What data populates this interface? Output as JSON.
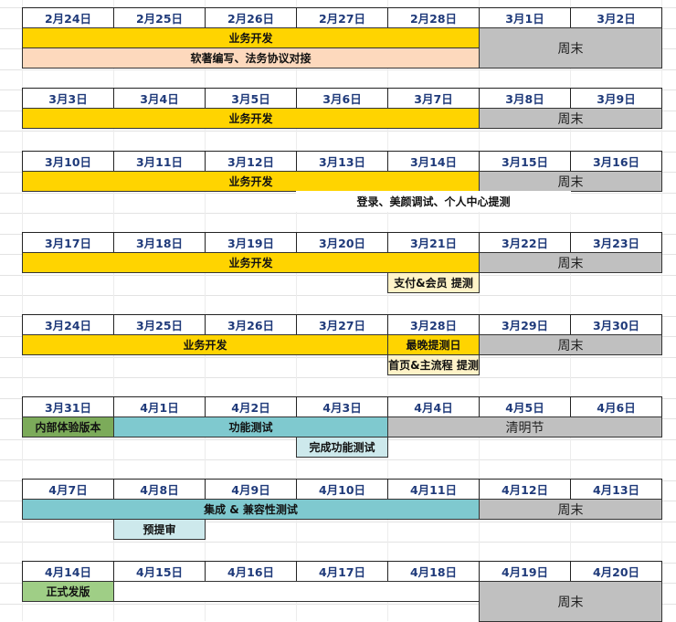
{
  "colors": {
    "dev": "#ffd400",
    "weekend": "#c0c0c0",
    "softcopy": "#fdd9bd",
    "note": "#fff3c8",
    "test": "#7fc9cf",
    "test_light": "#cde9ec",
    "internal": "#7cab5a",
    "release": "#9fce86",
    "blank": "#ffffff"
  },
  "weeks": [
    {
      "dates": [
        "2月24日",
        "2月25日",
        "2月26日",
        "2月27日",
        "2月28日",
        "3月1日",
        "3月2日"
      ],
      "rows": [
        [
          {
            "start": 0,
            "span": 5,
            "text": "业务开发",
            "color": "dev"
          },
          {
            "start": 5,
            "span": 2,
            "text": "周末",
            "color": "weekend",
            "rowspan": 2,
            "weekend": true
          }
        ],
        [
          {
            "start": 0,
            "span": 5,
            "text": "软著编写、法务协议对接",
            "color": "softcopy"
          }
        ]
      ]
    },
    {
      "dates": [
        "3月3日",
        "3月4日",
        "3月5日",
        "3月6日",
        "3月7日",
        "3月8日",
        "3月9日"
      ],
      "rows": [
        [
          {
            "start": 0,
            "span": 5,
            "text": "业务开发",
            "color": "dev"
          },
          {
            "start": 5,
            "span": 2,
            "text": "周末",
            "color": "weekend",
            "weekend": true
          }
        ]
      ]
    },
    {
      "dates": [
        "3月10日",
        "3月11日",
        "3月12日",
        "3月13日",
        "3月14日",
        "3月15日",
        "3月16日"
      ],
      "rows": [
        [
          {
            "start": 0,
            "span": 5,
            "text": "业务开发",
            "color": "dev"
          },
          {
            "start": 5,
            "span": 2,
            "text": "周末",
            "color": "weekend",
            "weekend": true
          }
        ],
        [
          {
            "start": 3,
            "span": 3,
            "text": "登录、美颜调试、个人中心提测",
            "color": "blank"
          }
        ]
      ]
    },
    {
      "dates": [
        "3月17日",
        "3月18日",
        "3月19日",
        "3月20日",
        "3月21日",
        "3月22日",
        "3月23日"
      ],
      "rows": [
        [
          {
            "start": 0,
            "span": 5,
            "text": "业务开发",
            "color": "dev"
          },
          {
            "start": 5,
            "span": 2,
            "text": "周末",
            "color": "weekend",
            "weekend": true
          }
        ],
        [
          {
            "start": 4,
            "span": 1,
            "text": "支付&会员 提测",
            "color": "note"
          }
        ]
      ]
    },
    {
      "dates": [
        "3月24日",
        "3月25日",
        "3月26日",
        "3月27日",
        "3月28日",
        "3月29日",
        "3月30日"
      ],
      "rows": [
        [
          {
            "start": 0,
            "span": 4,
            "text": "业务开发",
            "color": "dev"
          },
          {
            "start": 4,
            "span": 1,
            "text": "最晚提测日",
            "color": "dev"
          },
          {
            "start": 5,
            "span": 2,
            "text": "周末",
            "color": "weekend",
            "weekend": true
          }
        ],
        [
          {
            "start": 4,
            "span": 1,
            "text": "首页&主流程 提测",
            "color": "note"
          }
        ]
      ]
    },
    {
      "dates": [
        "3月31日",
        "4月1日",
        "4月2日",
        "4月3日",
        "4月4日",
        "4月5日",
        "4月6日"
      ],
      "rows": [
        [
          {
            "start": 0,
            "span": 1,
            "text": "内部体验版本",
            "color": "internal"
          },
          {
            "start": 1,
            "span": 3,
            "text": "功能测试",
            "color": "test"
          },
          {
            "start": 4,
            "span": 3,
            "text": "清明节",
            "color": "weekend",
            "weekend": true
          }
        ],
        [
          {
            "start": 3,
            "span": 1,
            "text": "完成功能测试",
            "color": "test_light"
          }
        ]
      ]
    },
    {
      "dates": [
        "4月7日",
        "4月8日",
        "4月9日",
        "4月10日",
        "4月11日",
        "4月12日",
        "4月13日"
      ],
      "rows": [
        [
          {
            "start": 0,
            "span": 5,
            "text": "集成 & 兼容性测试",
            "color": "test"
          },
          {
            "start": 5,
            "span": 2,
            "text": "周末",
            "color": "weekend",
            "weekend": true
          }
        ],
        [
          {
            "start": 1,
            "span": 1,
            "text": "预提审",
            "color": "test_light"
          }
        ]
      ]
    },
    {
      "dates": [
        "4月14日",
        "4月15日",
        "4月16日",
        "4月17日",
        "4月18日",
        "4月19日",
        "4月20日"
      ],
      "rows": [
        [
          {
            "start": 0,
            "span": 1,
            "text": "正式发版",
            "color": "release"
          },
          {
            "start": 1,
            "span": 4,
            "text": "",
            "color": "blank",
            "bordered": true
          },
          {
            "start": 5,
            "span": 2,
            "text": "周末",
            "color": "weekend",
            "rowspan": 2,
            "weekend": true
          }
        ]
      ]
    }
  ]
}
